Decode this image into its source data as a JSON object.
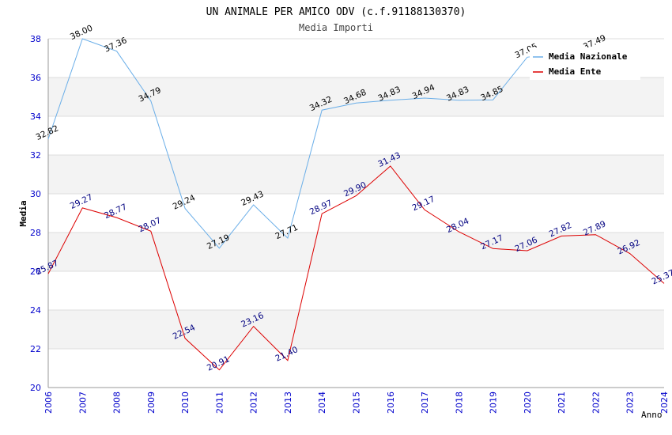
{
  "chart_data": {
    "type": "line",
    "title": "UN ANIMALE PER AMICO ODV (c.f.91188130370)",
    "subtitle": "Media Importi",
    "xlabel": "Anno",
    "ylabel": "Media",
    "ylim": [
      20,
      38
    ],
    "yticks": [
      "20",
      "22",
      "24",
      "26",
      "28",
      "30",
      "32",
      "34",
      "36",
      "38"
    ],
    "categories": [
      "2006",
      "2007",
      "2008",
      "2009",
      "2010",
      "2011",
      "2012",
      "2013",
      "2014",
      "2015",
      "2016",
      "2017",
      "2018",
      "2019",
      "2020",
      "2021",
      "2022",
      "2023",
      "2024"
    ],
    "grid": true,
    "legend_position": "top-right",
    "series": [
      {
        "name": "Media Nazionale",
        "color": "#6aaee8",
        "values": [
          32.82,
          38.0,
          37.36,
          34.79,
          29.24,
          27.19,
          29.43,
          27.71,
          34.32,
          34.68,
          34.83,
          34.94,
          34.83,
          34.85,
          37.05,
          null,
          37.49,
          null,
          null
        ],
        "labels": [
          "32.82",
          "38.00",
          "37.36",
          "34.79",
          "29.24",
          "27.19",
          "29.43",
          "27.71",
          "34.32",
          "34.68",
          "34.83",
          "34.94",
          "34.83",
          "34.85",
          "37.05",
          null,
          "37.49",
          null,
          null
        ]
      },
      {
        "name": "Media Ente",
        "color": "#dd0000",
        "values": [
          25.87,
          29.27,
          28.77,
          28.07,
          22.54,
          20.91,
          23.16,
          21.4,
          28.97,
          29.9,
          31.43,
          29.17,
          28.04,
          27.17,
          27.06,
          27.82,
          27.89,
          26.92,
          25.37
        ],
        "labels": [
          "25.87",
          "29.27",
          "28.77",
          "28.07",
          "22.54",
          "20.91",
          "23.16",
          "21.40",
          "28.97",
          "29.90",
          "31.43",
          "29.17",
          "28.04",
          "27.17",
          "27.06",
          "27.82",
          "27.89",
          "26.92",
          "25.37"
        ]
      }
    ]
  }
}
